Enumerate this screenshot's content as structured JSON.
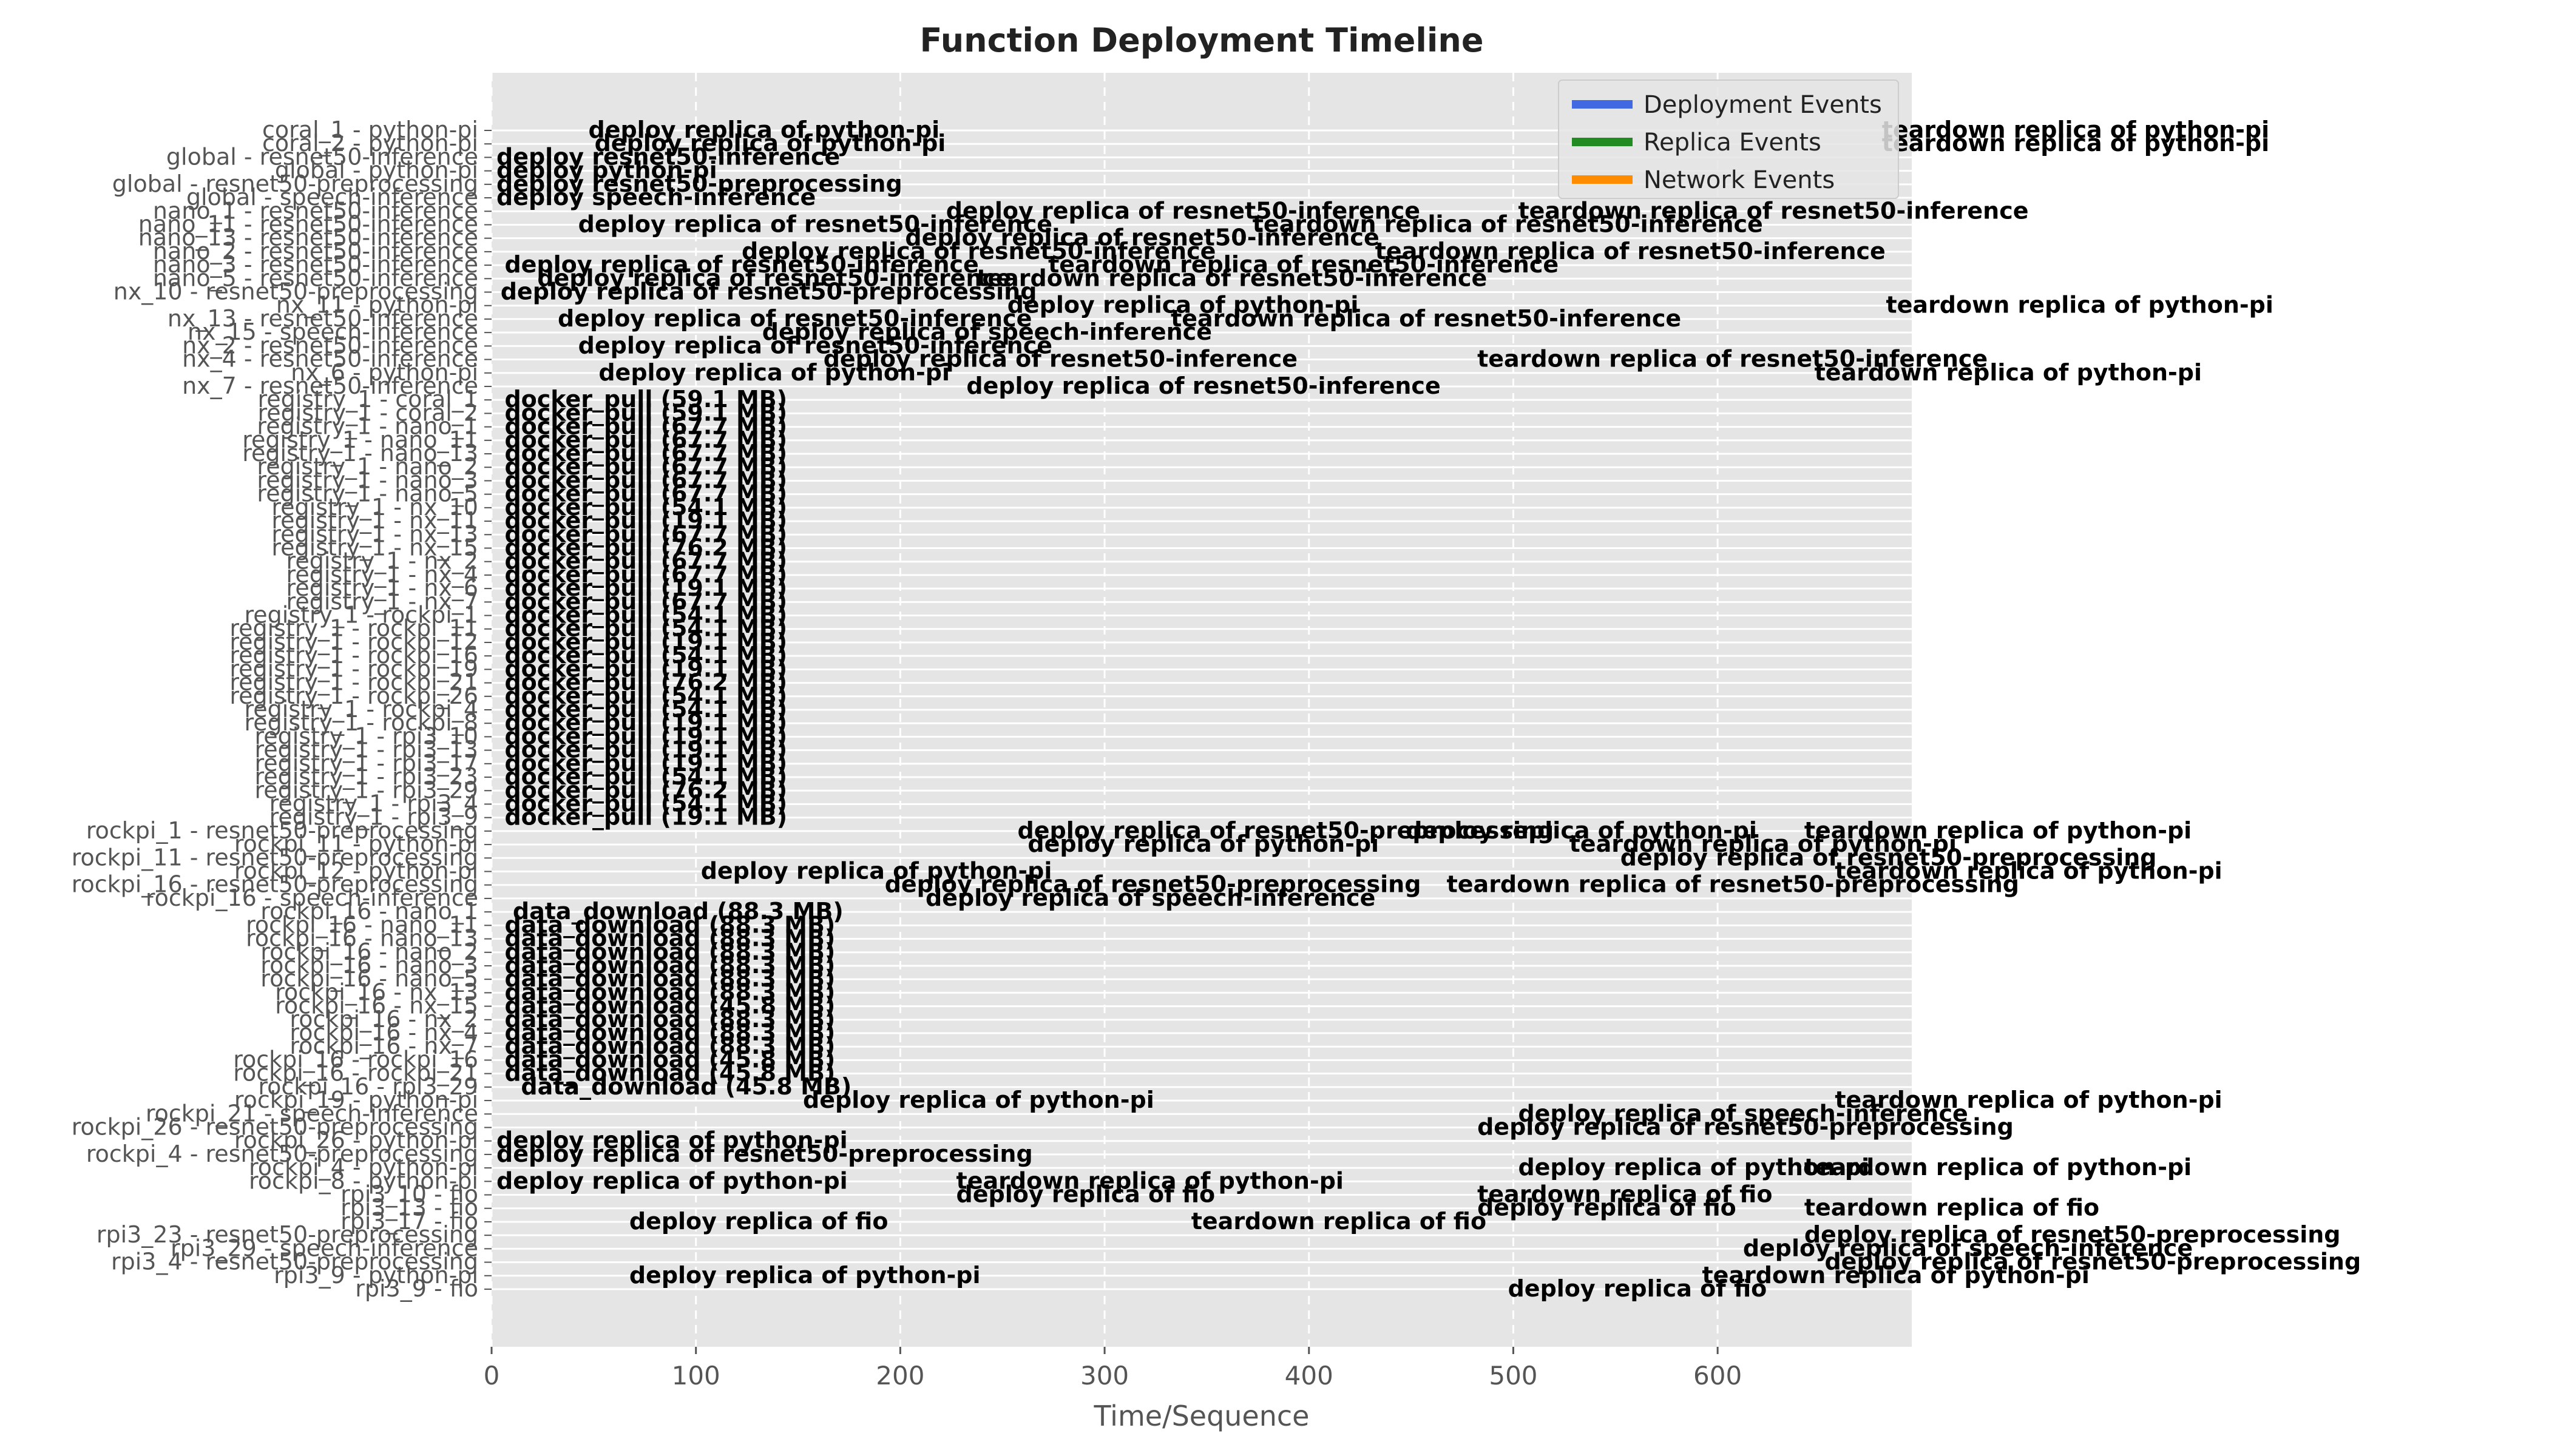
{
  "chart_data": {
    "type": "timeline",
    "title": "Function Deployment Timeline",
    "xlabel": "Time/Sequence",
    "ylabel": "",
    "xlim": [
      0,
      695
    ],
    "x_ticks": [
      0,
      100,
      200,
      300,
      400,
      500,
      600
    ],
    "grid": true,
    "legend": {
      "placement": "top-right",
      "entries": [
        {
          "label": "Deployment Events",
          "color": "#4169e1"
        },
        {
          "label": "Replica Events",
          "color": "#228b22"
        },
        {
          "label": "Network Events",
          "color": "#ff8c00"
        }
      ]
    },
    "rows": [
      {
        "label": "coral_1 - python-pi",
        "events": [
          {
            "x": 45,
            "text": "deploy replica of python-pi"
          },
          {
            "x": 678,
            "text": "teardown replica of python-pi"
          }
        ]
      },
      {
        "label": "coral_2 - python-pi",
        "events": [
          {
            "x": 48,
            "text": "deploy replica of python-pi"
          },
          {
            "x": 678,
            "text": "teardown replica of python-pi"
          }
        ]
      },
      {
        "label": "global - resnet50-inference",
        "events": [
          {
            "x": 0,
            "text": "deploy resnet50-inference"
          }
        ]
      },
      {
        "label": "global - python-pi",
        "events": [
          {
            "x": 0,
            "text": "deploy python-pi"
          }
        ]
      },
      {
        "label": "global - resnet50-preprocessing",
        "events": [
          {
            "x": 0,
            "text": "deploy resnet50-preprocessing"
          }
        ]
      },
      {
        "label": "global - speech-inference",
        "events": [
          {
            "x": 0,
            "text": "deploy speech-inference"
          }
        ]
      },
      {
        "label": "nano_1 - resnet50-inference",
        "events": [
          {
            "x": 220,
            "text": "deploy replica of resnet50-inference"
          },
          {
            "x": 500,
            "text": "teardown replica of resnet50-inference"
          }
        ]
      },
      {
        "label": "nano_11 - resnet50-inference",
        "events": [
          {
            "x": 40,
            "text": "deploy replica of resnet50-inference"
          },
          {
            "x": 370,
            "text": "teardown replica of resnet50-inference"
          }
        ]
      },
      {
        "label": "nano_13 - resnet50-inference",
        "events": [
          {
            "x": 200,
            "text": "deploy replica of resnet50-inference"
          }
        ]
      },
      {
        "label": "nano_2 - resnet50-inference",
        "events": [
          {
            "x": 120,
            "text": "deploy replica of resnet50-inference"
          },
          {
            "x": 430,
            "text": "teardown replica of resnet50-inference"
          }
        ]
      },
      {
        "label": "nano_3 - resnet50-inference",
        "events": [
          {
            "x": 4,
            "text": "deploy replica of resnet50-inference"
          },
          {
            "x": 270,
            "text": "teardown replica of resnet50-inference"
          }
        ]
      },
      {
        "label": "nano_5 - resnet50-inference",
        "events": [
          {
            "x": 20,
            "text": "deploy replica of resnet50-inference"
          },
          {
            "x": 235,
            "text": "teardown replica of resnet50-inference"
          }
        ]
      },
      {
        "label": "nx_10 - resnet50-preprocessing",
        "events": [
          {
            "x": 2,
            "text": "deploy replica of resnet50-preprocessing"
          }
        ]
      },
      {
        "label": "nx_11 - python-pi",
        "events": [
          {
            "x": 250,
            "text": "deploy replica of python-pi"
          },
          {
            "x": 680,
            "text": "teardown replica of python-pi"
          }
        ]
      },
      {
        "label": "nx_13 - resnet50-inference",
        "events": [
          {
            "x": 30,
            "text": "deploy replica of resnet50-inference"
          },
          {
            "x": 330,
            "text": "teardown replica of resnet50-inference"
          }
        ]
      },
      {
        "label": "nx_15 - speech-inference",
        "events": [
          {
            "x": 130,
            "text": "deploy replica of speech-inference"
          }
        ]
      },
      {
        "label": "nx_2 - resnet50-inference",
        "events": [
          {
            "x": 40,
            "text": "deploy replica of resnet50-inference"
          }
        ]
      },
      {
        "label": "nx_4 - resnet50-inference",
        "events": [
          {
            "x": 160,
            "text": "deploy replica of resnet50-inference"
          },
          {
            "x": 480,
            "text": "teardown replica of resnet50-inference"
          }
        ]
      },
      {
        "label": "nx_6 - python-pi",
        "events": [
          {
            "x": 50,
            "text": "deploy replica of python-pi"
          },
          {
            "x": 645,
            "text": "teardown replica of python-pi"
          }
        ]
      },
      {
        "label": "nx_7 - resnet50-inference",
        "events": [
          {
            "x": 230,
            "text": "deploy replica of resnet50-inference"
          }
        ]
      },
      {
        "label": "registry_1 - coral_1",
        "events": [
          {
            "x": 4,
            "text": "docker_pull (59.1 MB)"
          }
        ]
      },
      {
        "label": "registry_1 - coral_2",
        "events": [
          {
            "x": 4,
            "text": "docker_pull (59.1 MB)"
          }
        ]
      },
      {
        "label": "registry_1 - nano_1",
        "events": [
          {
            "x": 4,
            "text": "docker_pull (67.7 MB)"
          }
        ]
      },
      {
        "label": "registry_1 - nano_11",
        "events": [
          {
            "x": 4,
            "text": "docker_pull (67.7 MB)"
          }
        ]
      },
      {
        "label": "registry_1 - nano_13",
        "events": [
          {
            "x": 4,
            "text": "docker_pull (67.7 MB)"
          }
        ]
      },
      {
        "label": "registry_1 - nano_2",
        "events": [
          {
            "x": 4,
            "text": "docker_pull (67.7 MB)"
          }
        ]
      },
      {
        "label": "registry_1 - nano_3",
        "events": [
          {
            "x": 4,
            "text": "docker_pull (67.7 MB)"
          }
        ]
      },
      {
        "label": "registry_1 - nano_5",
        "events": [
          {
            "x": 4,
            "text": "docker_pull (67.7 MB)"
          }
        ]
      },
      {
        "label": "registry_1 - nx_10",
        "events": [
          {
            "x": 4,
            "text": "docker_pull (54.1 MB)"
          }
        ]
      },
      {
        "label": "registry_1 - nx_11",
        "events": [
          {
            "x": 4,
            "text": "docker_pull (19.1 MB)"
          }
        ]
      },
      {
        "label": "registry_1 - nx_13",
        "events": [
          {
            "x": 4,
            "text": "docker_pull (67.7 MB)"
          }
        ]
      },
      {
        "label": "registry_1 - nx_15",
        "events": [
          {
            "x": 4,
            "text": "docker_pull (76.2 MB)"
          }
        ]
      },
      {
        "label": "registry_1 - nx_2",
        "events": [
          {
            "x": 4,
            "text": "docker_pull (67.7 MB)"
          }
        ]
      },
      {
        "label": "registry_1 - nx_4",
        "events": [
          {
            "x": 4,
            "text": "docker_pull (67.7 MB)"
          }
        ]
      },
      {
        "label": "registry_1 - nx_6",
        "events": [
          {
            "x": 4,
            "text": "docker_pull (19.1 MB)"
          }
        ]
      },
      {
        "label": "registry_1 - nx_7",
        "events": [
          {
            "x": 4,
            "text": "docker_pull (67.7 MB)"
          }
        ]
      },
      {
        "label": "registry_1 - rockpi_1",
        "events": [
          {
            "x": 4,
            "text": "docker_pull (54.1 MB)"
          }
        ]
      },
      {
        "label": "registry_1 - rockpi_11",
        "events": [
          {
            "x": 4,
            "text": "docker_pull (54.1 MB)"
          }
        ]
      },
      {
        "label": "registry_1 - rockpi_12",
        "events": [
          {
            "x": 4,
            "text": "docker_pull (19.1 MB)"
          }
        ]
      },
      {
        "label": "registry_1 - rockpi_16",
        "events": [
          {
            "x": 4,
            "text": "docker_pull (54.1 MB)"
          }
        ]
      },
      {
        "label": "registry_1 - rockpi_19",
        "events": [
          {
            "x": 4,
            "text": "docker_pull (19.1 MB)"
          }
        ]
      },
      {
        "label": "registry_1 - rockpi_21",
        "events": [
          {
            "x": 4,
            "text": "docker_pull (76.2 MB)"
          }
        ]
      },
      {
        "label": "registry_1 - rockpi_26",
        "events": [
          {
            "x": 4,
            "text": "docker_pull (54.1 MB)"
          }
        ]
      },
      {
        "label": "registry_1 - rockpi_4",
        "events": [
          {
            "x": 4,
            "text": "docker_pull (54.1 MB)"
          }
        ]
      },
      {
        "label": "registry_1 - rockpi_8",
        "events": [
          {
            "x": 4,
            "text": "docker_pull (19.1 MB)"
          }
        ]
      },
      {
        "label": "registry_1 - rpi3_10",
        "events": [
          {
            "x": 4,
            "text": "docker_pull (19.1 MB)"
          }
        ]
      },
      {
        "label": "registry_1 - rpi3_13",
        "events": [
          {
            "x": 4,
            "text": "docker_pull (19.1 MB)"
          }
        ]
      },
      {
        "label": "registry_1 - rpi3_17",
        "events": [
          {
            "x": 4,
            "text": "docker_pull (19.1 MB)"
          }
        ]
      },
      {
        "label": "registry_1 - rpi3_23",
        "events": [
          {
            "x": 4,
            "text": "docker_pull (54.1 MB)"
          }
        ]
      },
      {
        "label": "registry_1 - rpi3_29",
        "events": [
          {
            "x": 4,
            "text": "docker_pull (76.2 MB)"
          }
        ]
      },
      {
        "label": "registry_1 - rpi3_4",
        "events": [
          {
            "x": 4,
            "text": "docker_pull (54.1 MB)"
          }
        ]
      },
      {
        "label": "registry_1 - rpi3_9",
        "events": [
          {
            "x": 4,
            "text": "docker_pull (19.1 MB)"
          }
        ]
      },
      {
        "label": "rockpi_1 - resnet50-preprocessing",
        "events": [
          {
            "x": 255,
            "text": "deploy replica of resnet50-preprocessing"
          },
          {
            "x": 445,
            "text": "deploy replica of python-pi"
          },
          {
            "x": 640,
            "text": "teardown replica of python-pi"
          }
        ]
      },
      {
        "label": "rockpi_11 - python-pi",
        "events": [
          {
            "x": 260,
            "text": "deploy replica of python-pi"
          },
          {
            "x": 525,
            "text": "teardown replica of python-pi"
          }
        ]
      },
      {
        "label": "rockpi_11 - resnet50-preprocessing",
        "events": [
          {
            "x": 550,
            "text": "deploy replica of resnet50-preprocessing"
          }
        ]
      },
      {
        "label": "rockpi_12 - python-pi",
        "events": [
          {
            "x": 100,
            "text": "deploy replica of python-pi"
          },
          {
            "x": 655,
            "text": "teardown replica of python-pi"
          }
        ]
      },
      {
        "label": "rockpi_16 - resnet50-preprocessing",
        "events": [
          {
            "x": 190,
            "text": "deploy replica of resnet50-preprocessing"
          },
          {
            "x": 465,
            "text": "teardown replica of resnet50-preprocessing"
          }
        ]
      },
      {
        "label": "rockpi_16 - speech-inference",
        "events": [
          {
            "x": 210,
            "text": "deploy replica of speech-inference"
          }
        ]
      },
      {
        "label": "rockpi_16 - nano_1",
        "events": [
          {
            "x": 8,
            "text": "data_download (88.3 MB)"
          }
        ]
      },
      {
        "label": "rockpi_16 - nano_11",
        "events": [
          {
            "x": 4,
            "text": "data_download (88.3 MB)"
          }
        ]
      },
      {
        "label": "rockpi_16 - nano_13",
        "events": [
          {
            "x": 4,
            "text": "data_download (88.3 MB)"
          }
        ]
      },
      {
        "label": "rockpi_16 - nano_2",
        "events": [
          {
            "x": 4,
            "text": "data_download (88.3 MB)"
          }
        ]
      },
      {
        "label": "rockpi_16 - nano_3",
        "events": [
          {
            "x": 4,
            "text": "data_download (88.3 MB)"
          }
        ]
      },
      {
        "label": "rockpi_16 - nano_5",
        "events": [
          {
            "x": 4,
            "text": "data_download (88.3 MB)"
          }
        ]
      },
      {
        "label": "rockpi_16 - nx_13",
        "events": [
          {
            "x": 4,
            "text": "data_download (88.3 MB)"
          }
        ]
      },
      {
        "label": "rockpi_16 - nx_15",
        "events": [
          {
            "x": 4,
            "text": "data_download (45.8 MB)"
          }
        ]
      },
      {
        "label": "rockpi_16 - nx_2",
        "events": [
          {
            "x": 4,
            "text": "data_download (88.3 MB)"
          }
        ]
      },
      {
        "label": "rockpi_16 - nx_4",
        "events": [
          {
            "x": 4,
            "text": "data_download (88.3 MB)"
          }
        ]
      },
      {
        "label": "rockpi_16 - nx_7",
        "events": [
          {
            "x": 4,
            "text": "data_download (88.3 MB)"
          }
        ]
      },
      {
        "label": "rockpi_16 - rockpi_16",
        "events": [
          {
            "x": 4,
            "text": "data_download (45.8 MB)"
          }
        ]
      },
      {
        "label": "rockpi_16 - rockpi_21",
        "events": [
          {
            "x": 4,
            "text": "data_download (45.8 MB)"
          }
        ]
      },
      {
        "label": "rockpi_16 - rpi3_29",
        "events": [
          {
            "x": 12,
            "text": "data_download (45.8 MB)"
          }
        ]
      },
      {
        "label": "rockpi_19 - python-pi",
        "events": [
          {
            "x": 150,
            "text": "deploy replica of python-pi"
          },
          {
            "x": 655,
            "text": "teardown replica of python-pi"
          }
        ]
      },
      {
        "label": "rockpi_21 - speech-inference",
        "events": [
          {
            "x": 500,
            "text": "deploy replica of speech-inference"
          }
        ]
      },
      {
        "label": "rockpi_26 - resnet50-preprocessing",
        "events": [
          {
            "x": 480,
            "text": "deploy replica of resnet50-preprocessing"
          }
        ]
      },
      {
        "label": "rockpi_26 - python-pi",
        "events": [
          {
            "x": 0,
            "text": "deploy replica of python-pi"
          }
        ]
      },
      {
        "label": "rockpi_4 - resnet50-preprocessing",
        "events": [
          {
            "x": 0,
            "text": "deploy replica of resnet50-preprocessing"
          }
        ]
      },
      {
        "label": "rockpi_4 - python-pi",
        "events": [
          {
            "x": 500,
            "text": "deploy replica of python-pi"
          },
          {
            "x": 640,
            "text": "teardown replica of python-pi"
          }
        ]
      },
      {
        "label": "rockpi_8 - python-pi",
        "events": [
          {
            "x": 0,
            "text": "deploy replica of python-pi"
          },
          {
            "x": 225,
            "text": "teardown replica of python-pi"
          }
        ]
      },
      {
        "label": "rpi3_10 - fio",
        "events": [
          {
            "x": 225,
            "text": "deploy replica of fio"
          },
          {
            "x": 480,
            "text": "teardown replica of fio"
          }
        ]
      },
      {
        "label": "rpi3_13 - fio",
        "events": [
          {
            "x": 480,
            "text": "deploy replica of fio"
          },
          {
            "x": 640,
            "text": "teardown replica of fio"
          }
        ]
      },
      {
        "label": "rpi3_17 - fio",
        "events": [
          {
            "x": 65,
            "text": "deploy replica of fio"
          },
          {
            "x": 340,
            "text": "teardown replica of fio"
          }
        ]
      },
      {
        "label": "rpi3_23 - resnet50-preprocessing",
        "events": [
          {
            "x": 640,
            "text": "deploy replica of resnet50-preprocessing"
          }
        ]
      },
      {
        "label": "rpi3_29 - speech-inference",
        "events": [
          {
            "x": 610,
            "text": "deploy replica of speech-inference"
          }
        ]
      },
      {
        "label": "rpi3_4 - resnet50-preprocessing",
        "events": [
          {
            "x": 650,
            "text": "deploy replica of resnet50-preprocessing"
          }
        ]
      },
      {
        "label": "rpi3_9 - python-pi",
        "events": [
          {
            "x": 65,
            "text": "deploy replica of python-pi"
          },
          {
            "x": 590,
            "text": "teardown replica of python-pi"
          }
        ]
      },
      {
        "label": "rpi3_9 - fio",
        "events": [
          {
            "x": 495,
            "text": "deploy replica of fio"
          }
        ]
      }
    ]
  }
}
